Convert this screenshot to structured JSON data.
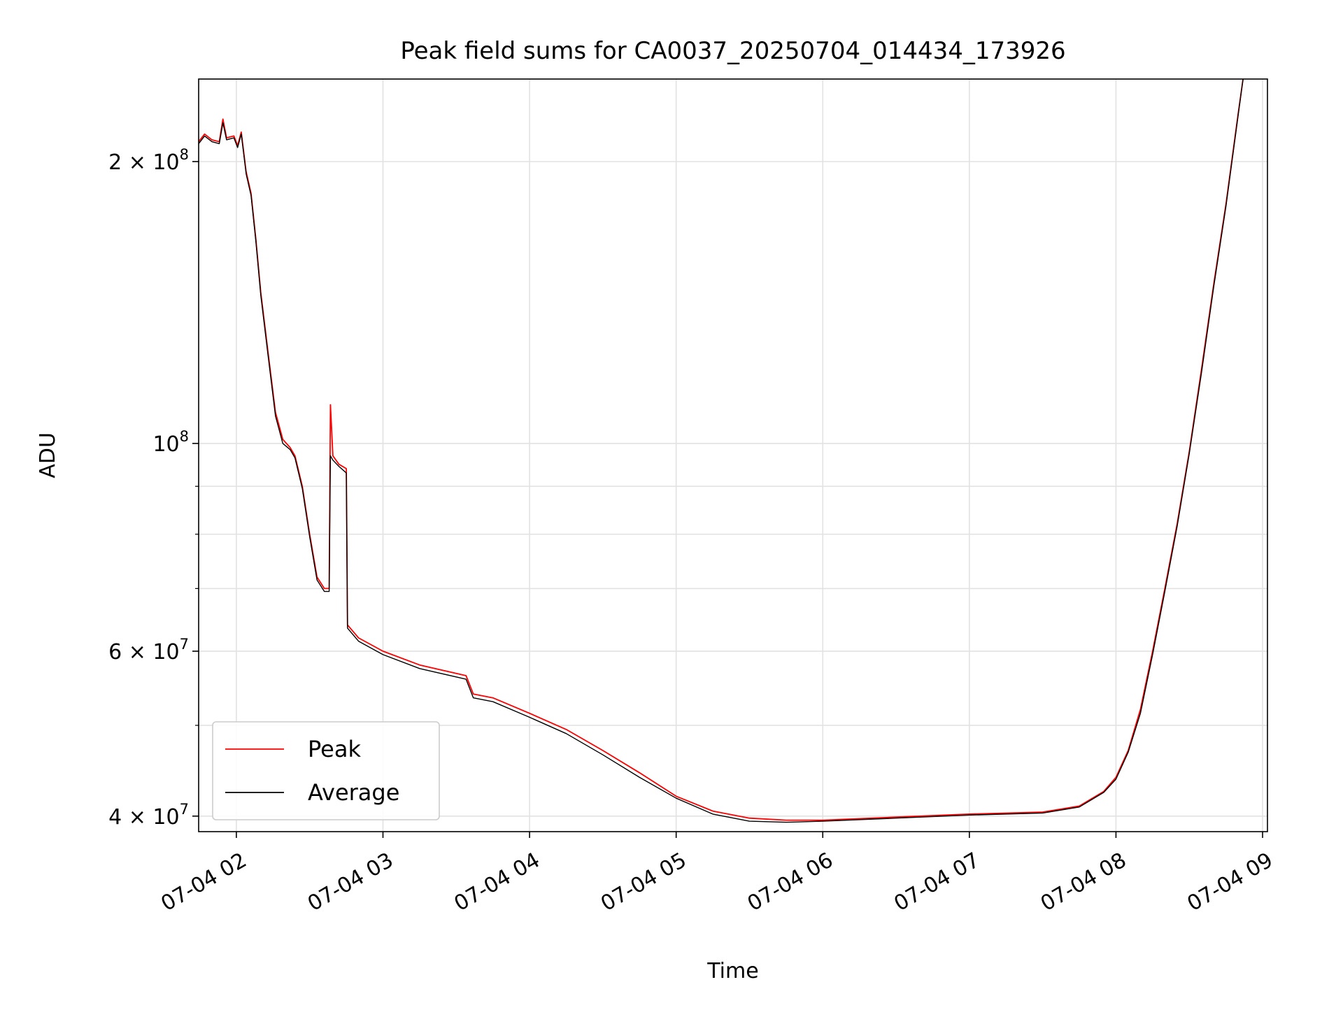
{
  "chart_data": {
    "type": "line",
    "title": "Peak field sums for CA0037_20250704_014434_173926",
    "xlabel": "Time",
    "ylabel": "ADU",
    "x_scale": "time",
    "y_scale": "log",
    "xlim": [
      "2025-07-04 01:44:34",
      "2025-07-04 09:02:00"
    ],
    "ylim": [
      38500000,
      245000000
    ],
    "grid": true,
    "legend_position": "lower-left",
    "x_ticks": [
      {
        "value": "2025-07-04 02:00",
        "label": "07-04 02"
      },
      {
        "value": "2025-07-04 03:00",
        "label": "07-04 03"
      },
      {
        "value": "2025-07-04 04:00",
        "label": "07-04 04"
      },
      {
        "value": "2025-07-04 05:00",
        "label": "07-04 05"
      },
      {
        "value": "2025-07-04 06:00",
        "label": "07-04 06"
      },
      {
        "value": "2025-07-04 07:00",
        "label": "07-04 07"
      },
      {
        "value": "2025-07-04 08:00",
        "label": "07-04 08"
      },
      {
        "value": "2025-07-04 09:00",
        "label": "07-04 09"
      }
    ],
    "y_ticks_major": [
      {
        "value": 40000000,
        "base": "4 × 10",
        "exp": "7"
      },
      {
        "value": 60000000,
        "base": "6 × 10",
        "exp": "7"
      },
      {
        "value": 100000000,
        "base": "10",
        "exp": "8"
      },
      {
        "value": 200000000,
        "base": "2 × 10",
        "exp": "8"
      }
    ],
    "y_ticks_minor": [
      50000000,
      70000000,
      80000000,
      90000000
    ],
    "series": [
      {
        "name": "Peak",
        "color": "#ff0000",
        "points": [
          [
            "2025-07-04 01:44:34",
            210000000
          ],
          [
            "2025-07-04 01:47:00",
            214000000
          ],
          [
            "2025-07-04 01:50:00",
            211000000
          ],
          [
            "2025-07-04 01:53:00",
            210000000
          ],
          [
            "2025-07-04 01:54:30",
            222000000
          ],
          [
            "2025-07-04 01:56:00",
            212000000
          ],
          [
            "2025-07-04 01:59:00",
            213000000
          ],
          [
            "2025-07-04 02:00:30",
            208000000
          ],
          [
            "2025-07-04 02:02:00",
            215000000
          ],
          [
            "2025-07-04 02:04:00",
            195000000
          ],
          [
            "2025-07-04 02:06:00",
            185000000
          ],
          [
            "2025-07-04 02:08:00",
            165000000
          ],
          [
            "2025-07-04 02:10:00",
            145000000
          ],
          [
            "2025-07-04 02:13:00",
            125000000
          ],
          [
            "2025-07-04 02:16:00",
            108000000
          ],
          [
            "2025-07-04 02:19:00",
            101000000
          ],
          [
            "2025-07-04 02:22:00",
            99000000
          ],
          [
            "2025-07-04 02:24:00",
            97000000
          ],
          [
            "2025-07-04 02:27:00",
            90000000
          ],
          [
            "2025-07-04 02:30:00",
            80000000
          ],
          [
            "2025-07-04 02:33:00",
            72000000
          ],
          [
            "2025-07-04 02:36:00",
            70000000
          ],
          [
            "2025-07-04 02:38:00",
            70000000
          ],
          [
            "2025-07-04 02:38:30",
            110000000
          ],
          [
            "2025-07-04 02:39:30",
            97000000
          ],
          [
            "2025-07-04 02:42:00",
            95000000
          ],
          [
            "2025-07-04 02:45:00",
            94000000
          ],
          [
            "2025-07-04 02:45:30",
            64000000
          ],
          [
            "2025-07-04 02:50:00",
            62000000
          ],
          [
            "2025-07-04 03:00:00",
            60000000
          ],
          [
            "2025-07-04 03:15:00",
            58000000
          ],
          [
            "2025-07-04 03:34:00",
            56500000
          ],
          [
            "2025-07-04 03:37:00",
            54000000
          ],
          [
            "2025-07-04 03:45:00",
            53500000
          ],
          [
            "2025-07-04 04:00:00",
            51500000
          ],
          [
            "2025-07-04 04:15:00",
            49500000
          ],
          [
            "2025-07-04 04:30:00",
            47000000
          ],
          [
            "2025-07-04 04:45:00",
            44500000
          ],
          [
            "2025-07-04 05:00:00",
            42000000
          ],
          [
            "2025-07-04 05:15:00",
            40500000
          ],
          [
            "2025-07-04 05:30:00",
            39800000
          ],
          [
            "2025-07-04 05:45:00",
            39600000
          ],
          [
            "2025-07-04 06:00:00",
            39600000
          ],
          [
            "2025-07-04 06:30:00",
            39900000
          ],
          [
            "2025-07-04 07:00:00",
            40200000
          ],
          [
            "2025-07-04 07:30:00",
            40400000
          ],
          [
            "2025-07-04 07:45:00",
            41000000
          ],
          [
            "2025-07-04 07:55:00",
            42500000
          ],
          [
            "2025-07-04 08:00:00",
            44000000
          ],
          [
            "2025-07-04 08:05:00",
            47000000
          ],
          [
            "2025-07-04 08:10:00",
            52000000
          ],
          [
            "2025-07-04 08:15:00",
            60000000
          ],
          [
            "2025-07-04 08:20:00",
            70000000
          ],
          [
            "2025-07-04 08:25:00",
            82000000
          ],
          [
            "2025-07-04 08:30:00",
            98000000
          ],
          [
            "2025-07-04 08:35:00",
            120000000
          ],
          [
            "2025-07-04 08:40:00",
            148000000
          ],
          [
            "2025-07-04 08:45:00",
            180000000
          ],
          [
            "2025-07-04 08:50:00",
            225000000
          ],
          [
            "2025-07-04 08:52:00",
            245000000
          ]
        ]
      },
      {
        "name": "Average",
        "color": "#000000",
        "points": [
          [
            "2025-07-04 01:44:34",
            209000000
          ],
          [
            "2025-07-04 01:47:00",
            213000000
          ],
          [
            "2025-07-04 01:50:00",
            210000000
          ],
          [
            "2025-07-04 01:53:00",
            209000000
          ],
          [
            "2025-07-04 01:54:30",
            220000000
          ],
          [
            "2025-07-04 01:56:00",
            211000000
          ],
          [
            "2025-07-04 01:59:00",
            212000000
          ],
          [
            "2025-07-04 02:00:30",
            207000000
          ],
          [
            "2025-07-04 02:02:00",
            214000000
          ],
          [
            "2025-07-04 02:04:00",
            194000000
          ],
          [
            "2025-07-04 02:06:00",
            184000000
          ],
          [
            "2025-07-04 02:08:00",
            164000000
          ],
          [
            "2025-07-04 02:10:00",
            144000000
          ],
          [
            "2025-07-04 02:13:00",
            124000000
          ],
          [
            "2025-07-04 02:16:00",
            107000000
          ],
          [
            "2025-07-04 02:19:00",
            100000000
          ],
          [
            "2025-07-04 02:22:00",
            98500000
          ],
          [
            "2025-07-04 02:24:00",
            96500000
          ],
          [
            "2025-07-04 02:27:00",
            89500000
          ],
          [
            "2025-07-04 02:30:00",
            79500000
          ],
          [
            "2025-07-04 02:33:00",
            71500000
          ],
          [
            "2025-07-04 02:36:00",
            69500000
          ],
          [
            "2025-07-04 02:38:00",
            69500000
          ],
          [
            "2025-07-04 02:38:30",
            97000000
          ],
          [
            "2025-07-04 02:39:30",
            96000000
          ],
          [
            "2025-07-04 02:42:00",
            94500000
          ],
          [
            "2025-07-04 02:45:00",
            93000000
          ],
          [
            "2025-07-04 02:45:30",
            63500000
          ],
          [
            "2025-07-04 02:50:00",
            61500000
          ],
          [
            "2025-07-04 03:00:00",
            59500000
          ],
          [
            "2025-07-04 03:15:00",
            57500000
          ],
          [
            "2025-07-04 03:34:00",
            56000000
          ],
          [
            "2025-07-04 03:37:00",
            53500000
          ],
          [
            "2025-07-04 03:45:00",
            53000000
          ],
          [
            "2025-07-04 04:00:00",
            51000000
          ],
          [
            "2025-07-04 04:15:00",
            49000000
          ],
          [
            "2025-07-04 04:30:00",
            46500000
          ],
          [
            "2025-07-04 04:45:00",
            44000000
          ],
          [
            "2025-07-04 05:00:00",
            41800000
          ],
          [
            "2025-07-04 05:15:00",
            40200000
          ],
          [
            "2025-07-04 05:30:00",
            39500000
          ],
          [
            "2025-07-04 05:45:00",
            39400000
          ],
          [
            "2025-07-04 06:00:00",
            39500000
          ],
          [
            "2025-07-04 06:30:00",
            39800000
          ],
          [
            "2025-07-04 07:00:00",
            40100000
          ],
          [
            "2025-07-04 07:30:00",
            40300000
          ],
          [
            "2025-07-04 07:45:00",
            40900000
          ],
          [
            "2025-07-04 07:55:00",
            42400000
          ],
          [
            "2025-07-04 08:00:00",
            43800000
          ],
          [
            "2025-07-04 08:05:00",
            46800000
          ],
          [
            "2025-07-04 08:10:00",
            51500000
          ],
          [
            "2025-07-04 08:15:00",
            59500000
          ],
          [
            "2025-07-04 08:20:00",
            69500000
          ],
          [
            "2025-07-04 08:25:00",
            81500000
          ],
          [
            "2025-07-04 08:30:00",
            97500000
          ],
          [
            "2025-07-04 08:35:00",
            119000000
          ],
          [
            "2025-07-04 08:40:00",
            147000000
          ],
          [
            "2025-07-04 08:45:00",
            179000000
          ],
          [
            "2025-07-04 08:50:00",
            224000000
          ],
          [
            "2025-07-04 08:52:00",
            245000000
          ]
        ]
      }
    ]
  }
}
